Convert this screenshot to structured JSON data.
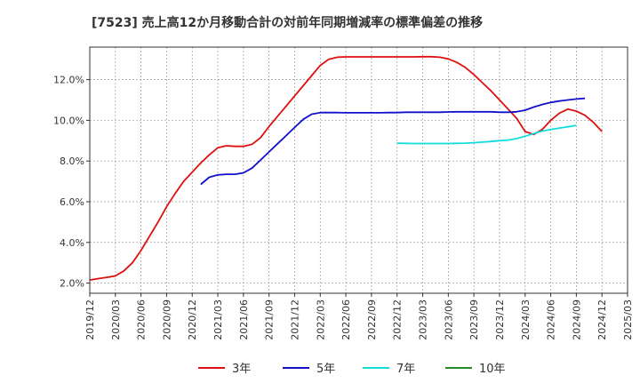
{
  "chart_data": {
    "type": "line",
    "title": "[7523]  売上高12か月移動合計の対前年同期増減率の標準偏差の推移",
    "xlabel": "",
    "ylabel": "",
    "ylim": [
      1.5,
      13.6
    ],
    "y_ticks": [
      2.0,
      4.0,
      6.0,
      8.0,
      10.0,
      12.0
    ],
    "y_tick_labels": [
      "2.0%",
      "4.0%",
      "6.0%",
      "8.0%",
      "10.0%",
      "12.0%"
    ],
    "x_tick_labels": [
      "2019/12",
      "2020/03",
      "2020/06",
      "2020/09",
      "2020/12",
      "2021/03",
      "2021/06",
      "2021/09",
      "2021/12",
      "2022/03",
      "2022/06",
      "2022/09",
      "2022/12",
      "2023/03",
      "2023/06",
      "2023/09",
      "2023/12",
      "2024/03",
      "2024/06",
      "2024/09",
      "2024/12",
      "2025/03"
    ],
    "grid": true,
    "legend_position": "bottom",
    "series": [
      {
        "name": "3年",
        "color": "#dd1111",
        "start": "2019/12",
        "values": [
          2.15,
          2.22,
          2.28,
          2.35,
          2.6,
          3.0,
          3.6,
          4.3,
          5.0,
          5.75,
          6.4,
          7.0,
          7.45,
          7.9,
          8.3,
          8.65,
          8.75,
          8.72,
          8.72,
          8.82,
          9.15,
          9.7,
          10.2,
          10.7,
          11.2,
          11.7,
          12.2,
          12.7,
          13.0,
          13.1,
          13.12,
          13.12,
          13.12,
          13.12,
          13.12,
          13.12,
          13.12,
          13.12,
          13.12,
          13.13,
          13.13,
          13.1,
          13.02,
          12.85,
          12.6,
          12.25,
          11.85,
          11.45,
          11.0,
          10.55,
          10.1,
          9.45,
          9.3,
          9.55,
          10.0,
          10.35,
          10.55,
          10.45,
          10.25,
          9.9,
          9.45
        ]
      },
      {
        "name": "5年",
        "color": "#1111cc",
        "start": "2021/01",
        "values": [
          6.85,
          7.2,
          7.32,
          7.35,
          7.35,
          7.42,
          7.65,
          8.05,
          8.45,
          8.85,
          9.25,
          9.65,
          10.05,
          10.3,
          10.38,
          10.38,
          10.38,
          10.37,
          10.37,
          10.37,
          10.37,
          10.37,
          10.38,
          10.38,
          10.4,
          10.4,
          10.4,
          10.4,
          10.4,
          10.41,
          10.42,
          10.42,
          10.42,
          10.42,
          10.42,
          10.4,
          10.4,
          10.42,
          10.5,
          10.65,
          10.78,
          10.88,
          10.95,
          11.0,
          11.05,
          11.08
        ]
      },
      {
        "name": "7年",
        "color": "#11dddd",
        "start": "2022/12",
        "values": [
          8.88,
          8.87,
          8.86,
          8.86,
          8.86,
          8.86,
          8.86,
          8.87,
          8.88,
          8.9,
          8.93,
          8.96,
          9.0,
          9.03,
          9.1,
          9.22,
          9.35,
          9.47,
          9.55,
          9.62,
          9.68,
          9.75
        ]
      },
      {
        "name": "10年",
        "color": "#228b22",
        "start": "",
        "values": []
      }
    ]
  }
}
